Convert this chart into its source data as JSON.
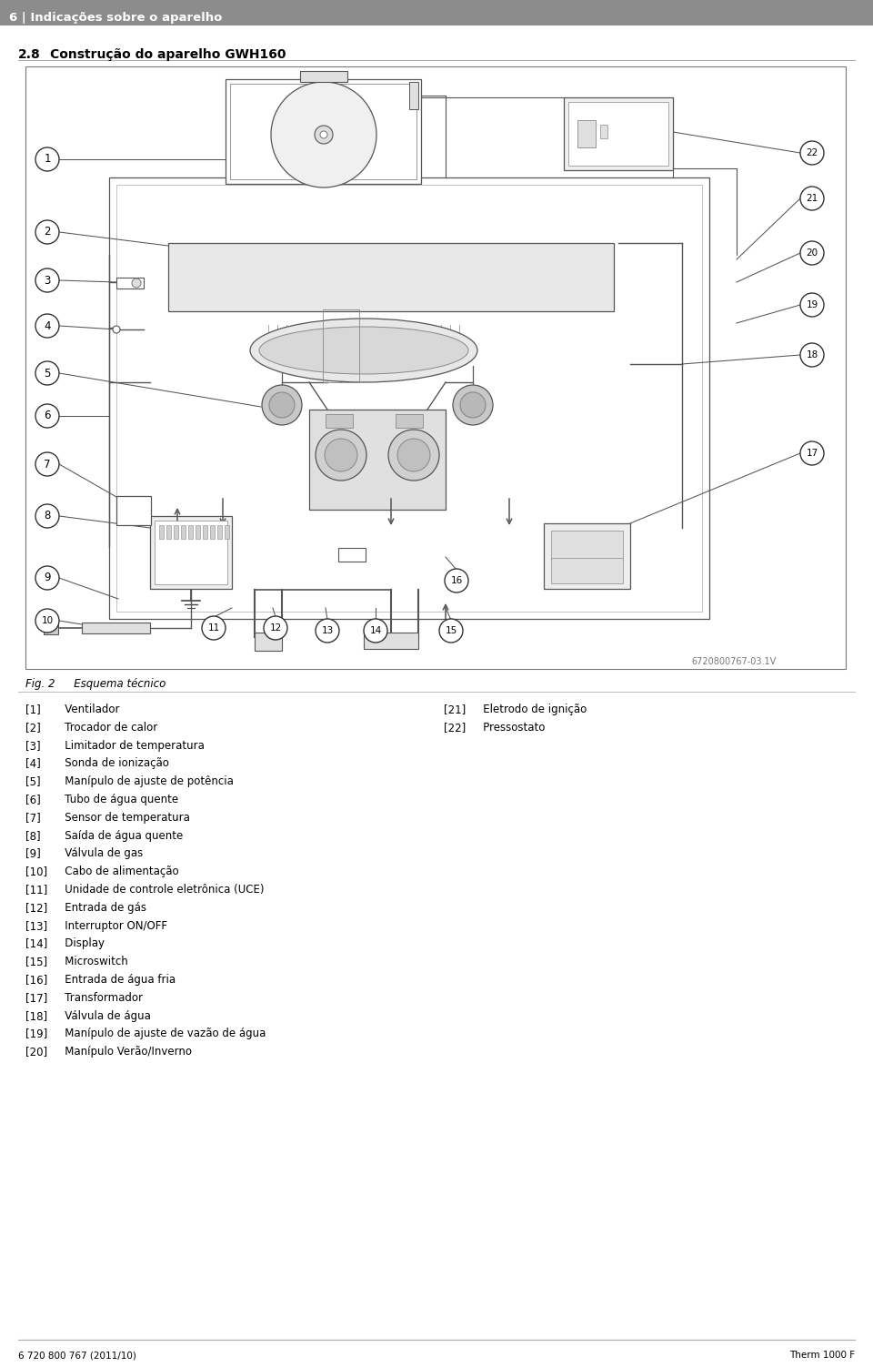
{
  "header_bg": "#8c8c8c",
  "header_text": "6 | Indicações sobre o aparelho",
  "header_text_color": "#ffffff",
  "section_title": "2.8",
  "section_subtitle": "Construção do aparelho GWH160",
  "fig_caption_italic": "Fig. 2",
  "fig_caption_text": "   Esquema técnico",
  "legend_left": [
    [
      "[1]",
      "   Ventilador"
    ],
    [
      "[2]",
      "   Trocador de calor"
    ],
    [
      "[3]",
      "   Limitador de temperatura"
    ],
    [
      "[4]",
      "   Sonda de ionização"
    ],
    [
      "[5]",
      "   Manípulo de ajuste de potência"
    ],
    [
      "[6]",
      "   Tubo de água quente"
    ],
    [
      "[7]",
      "   Sensor de temperatura"
    ],
    [
      "[8]",
      "   Saída de água quente"
    ],
    [
      "[9]",
      "   Válvula de gas"
    ],
    [
      "[10]",
      "   Cabo de alimentação"
    ],
    [
      "[11]",
      "   Unidade de controle eletrônica (UCE)"
    ],
    [
      "[12]",
      "   Entrada de gás"
    ],
    [
      "[13]",
      "   Interruptor ON/OFF"
    ],
    [
      "[14]",
      "   Display"
    ],
    [
      "[15]",
      "   Microswitch"
    ],
    [
      "[16]",
      "   Entrada de água fria"
    ],
    [
      "[17]",
      "   Transformador"
    ],
    [
      "[18]",
      "   Válvula de água"
    ],
    [
      "[19]",
      "   Manípulo de ajuste de vazão de água"
    ],
    [
      "[20]",
      "   Manípulo Verão/Inverno"
    ]
  ],
  "legend_right": [
    [
      "[21]",
      "   Eletrodo de ignição"
    ],
    [
      "[22]",
      "   Pressostato"
    ]
  ],
  "footer_left": "6 720 800 767 (2011/10)",
  "footer_right": "Therm 1000 F",
  "diagram_ref": "6720800767-03.1V",
  "bg_color": "#ffffff",
  "line_color": "#555555",
  "diagram_border": "#777777"
}
